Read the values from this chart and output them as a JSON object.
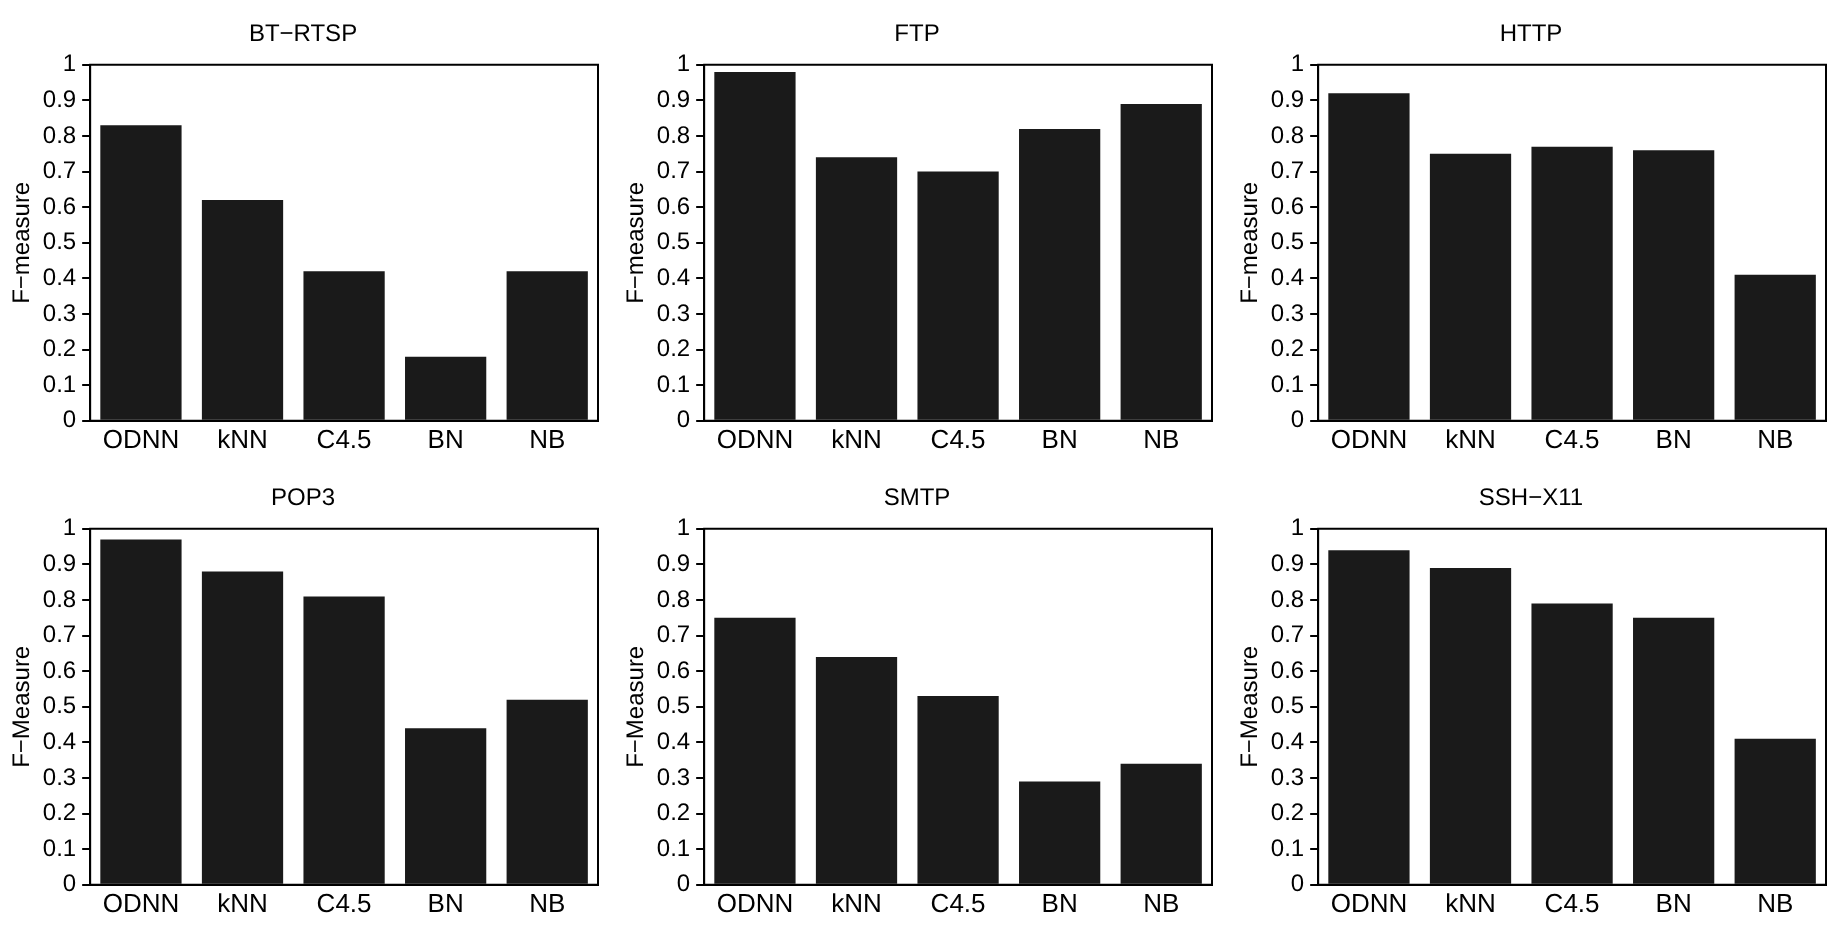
{
  "chart_data": [
    {
      "type": "bar",
      "title": "BT−RTSP",
      "ylabel": "F−measure",
      "categories": [
        "ODNN",
        "kNN",
        "C4.5",
        "BN",
        "NB"
      ],
      "values": [
        0.83,
        0.62,
        0.42,
        0.18,
        0.42
      ],
      "color": "#1a1a1a",
      "ylim": [
        0,
        1
      ],
      "yticks": [
        0,
        0.1,
        0.2,
        0.3,
        0.4,
        0.5,
        0.6,
        0.7,
        0.8,
        0.9,
        1
      ],
      "grid": false,
      "legend": false
    },
    {
      "type": "bar",
      "title": "FTP",
      "ylabel": "F−measure",
      "categories": [
        "ODNN",
        "kNN",
        "C4.5",
        "BN",
        "NB"
      ],
      "values": [
        0.98,
        0.74,
        0.7,
        0.82,
        0.89
      ],
      "color": "#1a1a1a",
      "ylim": [
        0,
        1
      ],
      "yticks": [
        0,
        0.1,
        0.2,
        0.3,
        0.4,
        0.5,
        0.6,
        0.7,
        0.8,
        0.9,
        1
      ],
      "grid": false,
      "legend": false
    },
    {
      "type": "bar",
      "title": "HTTP",
      "ylabel": "F−measure",
      "categories": [
        "ODNN",
        "kNN",
        "C4.5",
        "BN",
        "NB"
      ],
      "values": [
        0.92,
        0.75,
        0.77,
        0.76,
        0.41
      ],
      "color": "#1a1a1a",
      "ylim": [
        0,
        1
      ],
      "yticks": [
        0,
        0.1,
        0.2,
        0.3,
        0.4,
        0.5,
        0.6,
        0.7,
        0.8,
        0.9,
        1
      ],
      "grid": false,
      "legend": false
    },
    {
      "type": "bar",
      "title": "POP3",
      "ylabel": "F−Measure",
      "categories": [
        "ODNN",
        "kNN",
        "C4.5",
        "BN",
        "NB"
      ],
      "values": [
        0.97,
        0.88,
        0.81,
        0.44,
        0.52
      ],
      "color": "#1a1a1a",
      "ylim": [
        0,
        1
      ],
      "yticks": [
        0,
        0.1,
        0.2,
        0.3,
        0.4,
        0.5,
        0.6,
        0.7,
        0.8,
        0.9,
        1
      ],
      "grid": false,
      "legend": false
    },
    {
      "type": "bar",
      "title": "SMTP",
      "ylabel": "F−Measure",
      "categories": [
        "ODNN",
        "kNN",
        "C4.5",
        "BN",
        "NB"
      ],
      "values": [
        0.75,
        0.64,
        0.53,
        0.29,
        0.34
      ],
      "color": "#1a1a1a",
      "ylim": [
        0,
        1
      ],
      "yticks": [
        0,
        0.1,
        0.2,
        0.3,
        0.4,
        0.5,
        0.6,
        0.7,
        0.8,
        0.9,
        1
      ],
      "grid": false,
      "legend": false
    },
    {
      "type": "bar",
      "title": "SSH−X11",
      "ylabel": "F−Measure",
      "categories": [
        "ODNN",
        "kNN",
        "C4.5",
        "BN",
        "NB"
      ],
      "values": [
        0.94,
        0.89,
        0.79,
        0.75,
        0.41
      ],
      "color": "#1a1a1a",
      "ylim": [
        0,
        1
      ],
      "yticks": [
        0,
        0.1,
        0.2,
        0.3,
        0.4,
        0.5,
        0.6,
        0.7,
        0.8,
        0.9,
        1
      ],
      "grid": false,
      "legend": false
    }
  ]
}
